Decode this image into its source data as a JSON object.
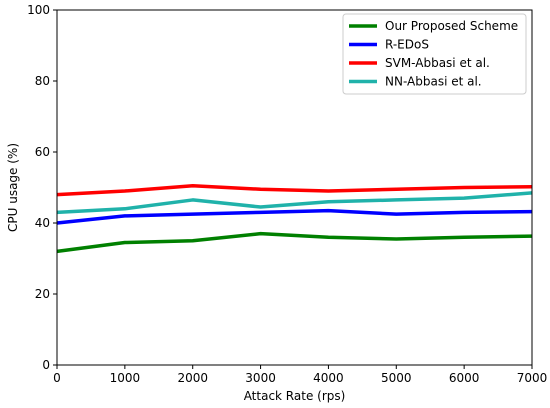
{
  "chart_data": {
    "type": "line",
    "xlabel": "Attack Rate (rps)",
    "ylabel": "CPU usage (%)",
    "xlim": [
      0,
      7000
    ],
    "ylim": [
      0,
      100
    ],
    "xticks": [
      "0",
      "1000",
      "2000",
      "3000",
      "4000",
      "5000",
      "6000",
      "7000"
    ],
    "yticks": [
      "0",
      "20",
      "40",
      "60",
      "80",
      "100"
    ],
    "grid": false,
    "legend_position": "top-right",
    "x": [
      0,
      1000,
      2000,
      3000,
      4000,
      5000,
      6000,
      7000
    ],
    "series": [
      {
        "name": "Our Proposed Scheme",
        "color": "#008000",
        "values": [
          32,
          34.5,
          35,
          37,
          36,
          35.5,
          36,
          36.3
        ]
      },
      {
        "name": "R-EDoS",
        "color": "#0000ff",
        "values": [
          40,
          42,
          42.5,
          43,
          43.5,
          42.5,
          43,
          43.2
        ]
      },
      {
        "name": "SVM-Abbasi et al.",
        "color": "#ff0000",
        "values": [
          48,
          49,
          50.5,
          49.5,
          49,
          49.5,
          50,
          50.2
        ]
      },
      {
        "name": "NN-Abbasi et al.",
        "color": "#20b2aa",
        "values": [
          43,
          44,
          46.5,
          44.5,
          46,
          46.5,
          47,
          48.5
        ]
      }
    ]
  }
}
